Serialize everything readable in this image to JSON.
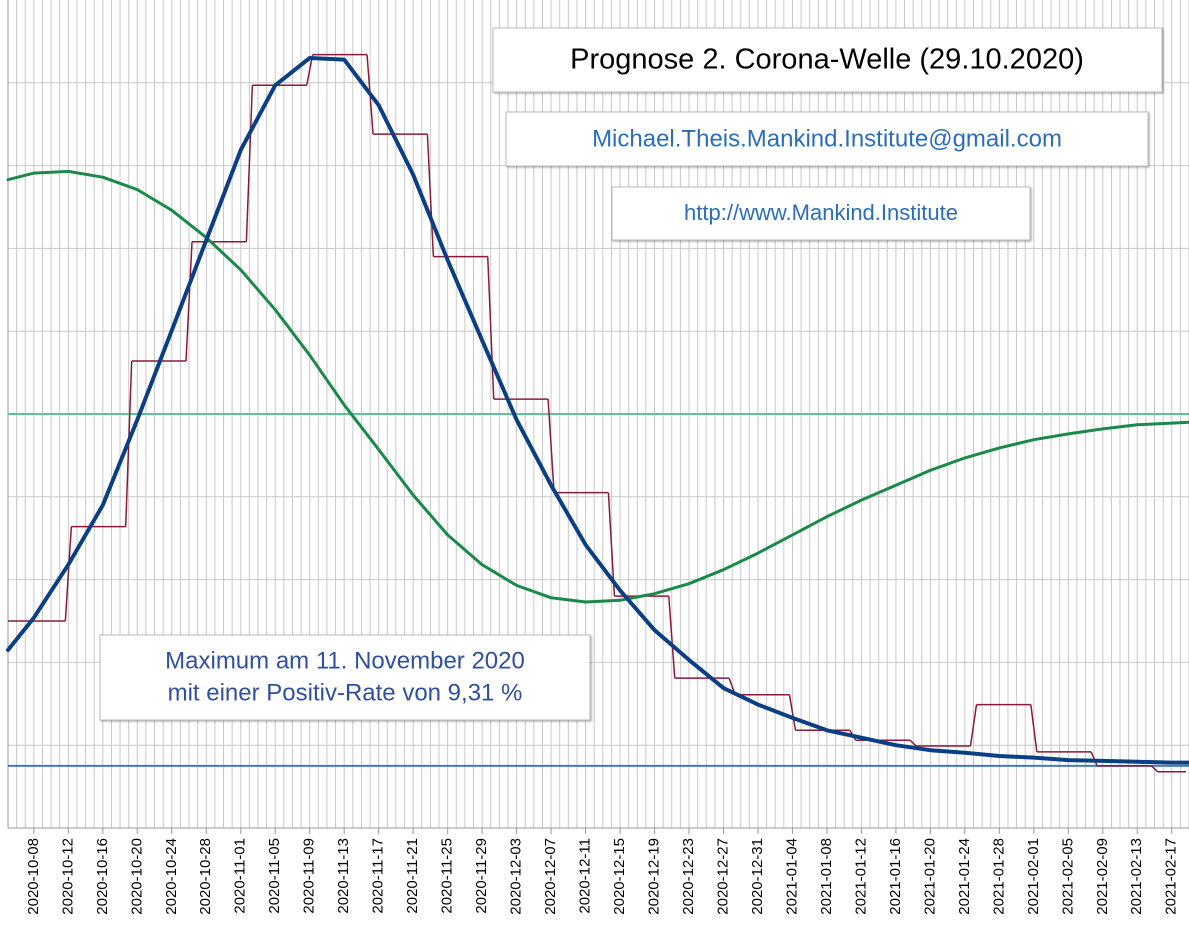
{
  "chart_data": {
    "type": "line",
    "title": "Prognose 2. Corona-Welle (29.10.2020)",
    "email": "Michael.Theis.Mankind.Institute@gmail.com",
    "url": "http://www.Mankind.Institute",
    "annotation": [
      "Maximum am 11. November 2020",
      "mit einer Positiv-Rate von 9,31 %"
    ],
    "xlim": [
      "2020-10-05",
      "2021-02-19"
    ],
    "xticks": [
      "2020-10-08",
      "2020-10-12",
      "2020-10-16",
      "2020-10-20",
      "2020-10-24",
      "2020-10-28",
      "2020-11-01",
      "2020-11-05",
      "2020-11-09",
      "2020-11-13",
      "2020-11-17",
      "2020-11-21",
      "2020-11-25",
      "2020-11-29",
      "2020-12-03",
      "2020-12-07",
      "2020-12-11",
      "2020-12-15",
      "2020-12-19",
      "2020-12-23",
      "2020-12-27",
      "2020-12-31",
      "2021-01-04",
      "2021-01-08",
      "2021-01-12",
      "2021-01-16",
      "2021-01-20",
      "2021-01-24",
      "2021-01-28",
      "2021-02-01",
      "2021-02-05",
      "2021-02-09",
      "2021-02-13",
      "2021-02-17"
    ],
    "ylim": [
      0,
      10
    ],
    "yticks": [
      0,
      1,
      2,
      3,
      4,
      5,
      6,
      7,
      8,
      9
    ],
    "ytick_labels": false,
    "grid": true,
    "minor_grid": "day",
    "x": [
      "2020-10-05",
      "2020-10-08",
      "2020-10-12",
      "2020-10-16",
      "2020-10-20",
      "2020-10-24",
      "2020-10-28",
      "2020-11-01",
      "2020-11-05",
      "2020-11-09",
      "2020-11-13",
      "2020-11-17",
      "2020-11-21",
      "2020-11-25",
      "2020-11-29",
      "2020-12-03",
      "2020-12-07",
      "2020-12-11",
      "2020-12-15",
      "2020-12-19",
      "2020-12-23",
      "2020-12-27",
      "2020-12-31",
      "2021-01-04",
      "2021-01-08",
      "2021-01-12",
      "2021-01-16",
      "2021-01-20",
      "2021-01-24",
      "2021-01-28",
      "2021-02-01",
      "2021-02-05",
      "2021-02-09",
      "2021-02-13",
      "2021-02-17",
      "2021-02-19"
    ],
    "steps": {
      "color": "#8b1a3a",
      "x": [
        "2020-10-05",
        "2020-10-12",
        "2020-10-19",
        "2020-10-26",
        "2020-11-02",
        "2020-11-09",
        "2020-11-16",
        "2020-11-23",
        "2020-11-30",
        "2020-12-07",
        "2020-12-14",
        "2020-12-21",
        "2020-12-28",
        "2021-01-04",
        "2021-01-11",
        "2021-01-18",
        "2021-01-25",
        "2021-02-01",
        "2021-02-08",
        "2021-02-15"
      ],
      "values": [
        2.5,
        3.64,
        5.64,
        7.08,
        8.97,
        9.34,
        8.38,
        6.9,
        5.18,
        4.05,
        2.8,
        1.81,
        1.61,
        1.18,
        1.06,
        0.99,
        1.49,
        0.92,
        0.75,
        0.68
      ]
    },
    "series": [
      {
        "color": "#1a8a4a",
        "width": 3,
        "values": [
          7.83,
          7.91,
          7.93,
          7.86,
          7.71,
          7.46,
          7.13,
          6.74,
          6.26,
          5.71,
          5.11,
          4.57,
          4.02,
          3.54,
          3.18,
          2.93,
          2.78,
          2.73,
          2.75,
          2.83,
          2.95,
          3.12,
          3.32,
          3.54,
          3.76,
          3.96,
          4.14,
          4.32,
          4.47,
          4.59,
          4.69,
          4.76,
          4.82,
          4.87,
          4.89,
          4.9
        ]
      },
      {
        "color": "#0b3f84",
        "width": 4,
        "values": [
          2.15,
          2.54,
          3.18,
          3.9,
          4.93,
          6.01,
          7.1,
          8.19,
          8.97,
          9.3,
          9.28,
          8.73,
          7.89,
          6.86,
          5.89,
          4.93,
          4.14,
          3.42,
          2.87,
          2.39,
          2.03,
          1.69,
          1.49,
          1.33,
          1.18,
          1.09,
          1.0,
          0.94,
          0.91,
          0.87,
          0.85,
          0.82,
          0.81,
          0.8,
          0.79,
          0.79
        ]
      }
    ],
    "hlines": [
      {
        "value": 5,
        "color": "#5cc39a"
      },
      {
        "value": 0.75,
        "color": "#4a78c4"
      }
    ]
  }
}
